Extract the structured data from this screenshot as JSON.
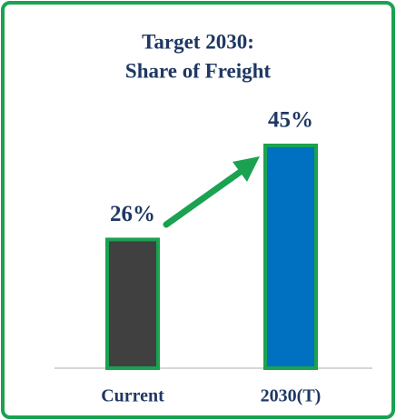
{
  "chart_data": {
    "type": "bar",
    "title": [
      "Target 2030:",
      "Share of Freight"
    ],
    "categories": [
      "Current",
      "2030(T)"
    ],
    "values": [
      26,
      45
    ],
    "value_labels": [
      "26%",
      "45%"
    ],
    "colors": [
      "#404040",
      "#0070c0"
    ],
    "bar_outline": "#1aa251"
  }
}
